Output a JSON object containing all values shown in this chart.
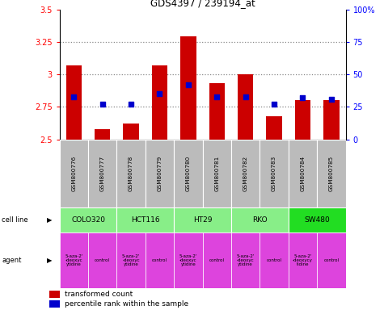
{
  "title": "GDS4397 / 239194_at",
  "samples": [
    "GSM800776",
    "GSM800777",
    "GSM800778",
    "GSM800779",
    "GSM800780",
    "GSM800781",
    "GSM800782",
    "GSM800783",
    "GSM800784",
    "GSM800785"
  ],
  "transformed_counts": [
    3.07,
    2.58,
    2.62,
    3.07,
    3.29,
    2.93,
    3.0,
    2.68,
    2.8,
    2.8
  ],
  "percentile_ranks": [
    33,
    27,
    27,
    35,
    42,
    33,
    33,
    27,
    32,
    31
  ],
  "bar_bottom": 2.5,
  "ylim_left": [
    2.5,
    3.5
  ],
  "ylim_right": [
    0,
    100
  ],
  "yticks_left": [
    2.5,
    2.75,
    3.0,
    3.25,
    3.5
  ],
  "yticks_right": [
    0,
    25,
    50,
    75,
    100
  ],
  "ytick_labels_left": [
    "2.5",
    "2.75",
    "3",
    "3.25",
    "3.5"
  ],
  "ytick_labels_right": [
    "0",
    "25",
    "50",
    "75",
    "100%"
  ],
  "bar_color": "#cc0000",
  "dot_color": "#0000cc",
  "grid_color": "#888888",
  "cell_lines": [
    {
      "name": "COLO320",
      "start": 0,
      "end": 2,
      "color": "#88ee88"
    },
    {
      "name": "HCT116",
      "start": 2,
      "end": 4,
      "color": "#88ee88"
    },
    {
      "name": "HT29",
      "start": 4,
      "end": 6,
      "color": "#88ee88"
    },
    {
      "name": "RKO",
      "start": 6,
      "end": 8,
      "color": "#88ee88"
    },
    {
      "name": "SW480",
      "start": 8,
      "end": 10,
      "color": "#22dd22"
    }
  ],
  "agent_names": [
    "5-aza-2'\n-deoxyc\nytidine",
    "control",
    "5-aza-2'\n-deoxyc\nytidine",
    "control",
    "5-aza-2'\n-deoxyc\nytidine",
    "control",
    "5-aza-2'\n-deoxyc\nytidine",
    "control",
    "5-aza-2'\n-deoxycy\ntidine",
    "control"
  ],
  "agent_color": "#dd44dd",
  "sample_bg_color": "#bbbbbb",
  "label_cell_line": "cell line",
  "label_agent": "agent",
  "legend_bar": "transformed count",
  "legend_dot": "percentile rank within the sample",
  "arrow": "▶"
}
